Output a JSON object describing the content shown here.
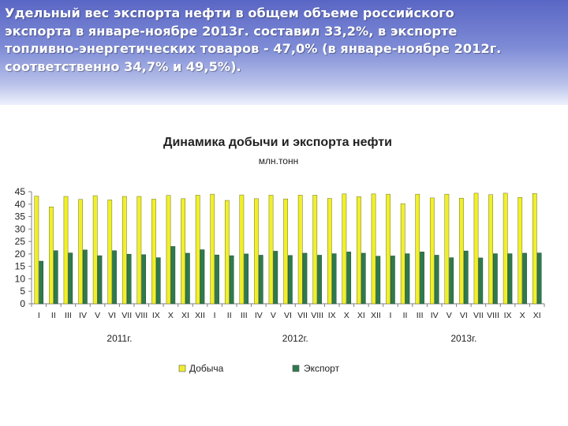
{
  "header": {
    "lines": [
      "Удельный вес экспорта нефти в общем объеме российского",
      "экспорта в январе-ноябре 2013г. составил 33,2%, в экспорте",
      "топливно-энергетических товаров - 47,0% (в январе-ноябре 2012г.",
      "соответственно 34,7% и 49,5%)."
    ]
  },
  "colors": {
    "production": "#f0f02a",
    "export": "#2e7a4e",
    "axis": "#808080"
  },
  "chart_data": {
    "type": "bar",
    "title": "Динамика добычи и экспорта нефти",
    "subtitle": "млн.тонн",
    "categories": [
      "I",
      "II",
      "III",
      "IV",
      "V",
      "VI",
      "VII",
      "VIII",
      "IX",
      "X",
      "XI",
      "XII",
      "I",
      "II",
      "III",
      "IV",
      "V",
      "VI",
      "VII",
      "VIII",
      "IX",
      "X",
      "XI",
      "XII",
      "I",
      "II",
      "III",
      "IV",
      "V",
      "VI",
      "VII",
      "VIII",
      "IX",
      "X",
      "XI"
    ],
    "years": [
      {
        "label": "2011г.",
        "start": 0,
        "end": 11
      },
      {
        "label": "2012г.",
        "start": 12,
        "end": 23
      },
      {
        "label": "2013г.",
        "start": 24,
        "end": 34
      }
    ],
    "series": [
      {
        "name": "Добыча",
        "values": [
          43.2,
          38.9,
          43.1,
          41.9,
          43.4,
          41.7,
          43.1,
          43.1,
          42,
          43.5,
          42.2,
          43.6,
          44,
          41.5,
          43.7,
          42.2,
          43.6,
          42.1,
          43.6,
          43.6,
          42.3,
          44.1,
          43,
          44.1,
          44,
          40.2,
          44,
          42.5,
          44,
          42.4,
          44.4,
          43.8,
          44.4,
          42.7,
          44.3
        ]
      },
      {
        "name": "Экспорт",
        "values": [
          17.1,
          21.3,
          20.4,
          21.6,
          19.3,
          21.3,
          19.9,
          19.7,
          18.5,
          23,
          20.3,
          21.7,
          19.6,
          19.3,
          20,
          19.5,
          21.1,
          19.4,
          20.3,
          19.5,
          20.1,
          20.8,
          20.3,
          19.1,
          19.2,
          20.1,
          20.8,
          19.5,
          18.5,
          21.2,
          18.4,
          20.1,
          20.1,
          20.3,
          20.4
        ]
      }
    ],
    "yticks": [
      0,
      5,
      10,
      15,
      20,
      25,
      30,
      35,
      40,
      45
    ],
    "ylim": [
      0,
      45
    ],
    "grid": false,
    "legend_position": "bottom"
  }
}
